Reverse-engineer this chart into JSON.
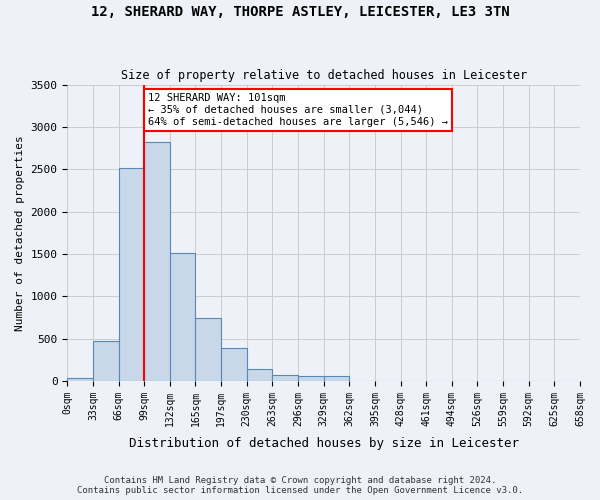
{
  "title_line1": "12, SHERARD WAY, THORPE ASTLEY, LEICESTER, LE3 3TN",
  "title_line2": "Size of property relative to detached houses in Leicester",
  "xlabel": "Distribution of detached houses by size in Leicester",
  "ylabel": "Number of detached properties",
  "footer_line1": "Contains HM Land Registry data © Crown copyright and database right 2024.",
  "footer_line2": "Contains public sector information licensed under the Open Government Licence v3.0.",
  "bin_labels": [
    "0sqm",
    "33sqm",
    "66sqm",
    "99sqm",
    "132sqm",
    "165sqm",
    "197sqm",
    "230sqm",
    "263sqm",
    "296sqm",
    "329sqm",
    "362sqm",
    "395sqm",
    "428sqm",
    "461sqm",
    "494sqm",
    "526sqm",
    "559sqm",
    "592sqm",
    "625sqm",
    "658sqm"
  ],
  "bar_values": [
    30,
    470,
    2510,
    2820,
    1510,
    745,
    390,
    140,
    75,
    55,
    55,
    0,
    0,
    0,
    0,
    0,
    0,
    0,
    0,
    0
  ],
  "bar_color": "#c8d8e8",
  "bar_edge_color": "#5588bb",
  "grid_color": "#cccccc",
  "bg_color": "#eef2f8",
  "vline_x": 3,
  "vline_color": "red",
  "annotation_text": "12 SHERARD WAY: 101sqm\n← 35% of detached houses are smaller (3,044)\n64% of semi-detached houses are larger (5,546) →",
  "annotation_box_color": "white",
  "annotation_box_edge": "red",
  "ylim": [
    0,
    3500
  ],
  "yticks": [
    0,
    500,
    1000,
    1500,
    2000,
    2500,
    3000,
    3500
  ]
}
